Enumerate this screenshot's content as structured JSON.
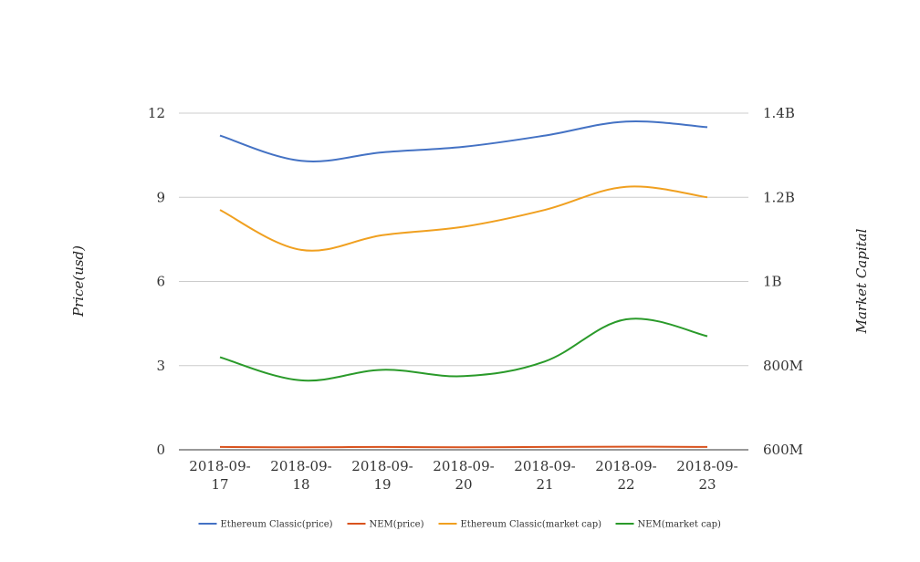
{
  "chart_data": {
    "type": "line",
    "title": "",
    "x": [
      "2018-09-17",
      "2018-09-18",
      "2018-09-19",
      "2018-09-20",
      "2018-09-21",
      "2018-09-22",
      "2018-09-23"
    ],
    "x_tick_labels": [
      [
        "2018-09-",
        "17"
      ],
      [
        "2018-09-",
        "18"
      ],
      [
        "2018-09-",
        "19"
      ],
      [
        "2018-09-",
        "20"
      ],
      [
        "2018-09-",
        "21"
      ],
      [
        "2018-09-",
        "22"
      ],
      [
        "2018-09-",
        "23"
      ]
    ],
    "ylabel_left": "Price(usd)",
    "ylabel_right": "Market Capital",
    "ylim_left": [
      0,
      12
    ],
    "ylim_right": [
      600000000,
      1400000000
    ],
    "y_ticks_left": [
      "0",
      "3",
      "6",
      "9",
      "12"
    ],
    "y_ticks_right": [
      "600M",
      "800M",
      "1B",
      "1.2B",
      "1.4B"
    ],
    "grid": true,
    "legend_position": "bottom",
    "series": [
      {
        "name": "Ethereum Classic(price)",
        "axis": "left",
        "color": "#4472c4",
        "values": [
          11.2,
          10.3,
          10.6,
          10.8,
          11.2,
          11.7,
          11.5
        ]
      },
      {
        "name": "NEM(price)",
        "axis": "left",
        "color": "#d9531e",
        "values": [
          0.1,
          0.09,
          0.1,
          0.09,
          0.1,
          0.11,
          0.1
        ]
      },
      {
        "name": "Ethereum Classic(market cap)",
        "axis": "right",
        "color": "#f0a020",
        "values": [
          1170000000,
          1075000000,
          1110000000,
          1130000000,
          1170000000,
          1225000000,
          1200000000
        ]
      },
      {
        "name": "NEM(market cap)",
        "axis": "right",
        "color": "#2a9a2a",
        "values": [
          820000000,
          765000000,
          790000000,
          775000000,
          810000000,
          910000000,
          870000000
        ]
      }
    ]
  }
}
